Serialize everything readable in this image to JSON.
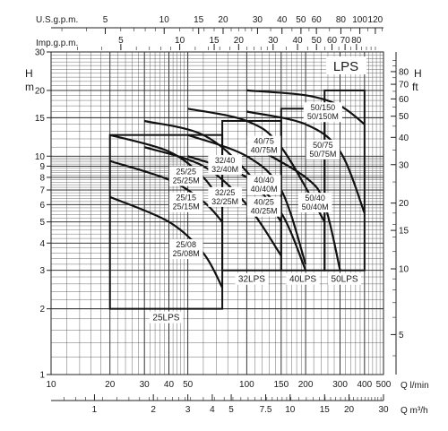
{
  "chart_data": {
    "type": "line",
    "title": "LPS",
    "x_axis_top_1": {
      "label": "U.S.g.p.m.",
      "ticks": [
        "5",
        "10",
        "15",
        "20",
        "30",
        "40",
        "50",
        "60",
        "80",
        "100",
        "120"
      ],
      "values": [
        5,
        10,
        15,
        20,
        30,
        40,
        50,
        60,
        80,
        100,
        120
      ]
    },
    "x_axis_top_2": {
      "label": "Imp.g.p.m.",
      "ticks": [
        "5",
        "10",
        "15",
        "20",
        "30",
        "40",
        "50",
        "60",
        "70",
        "80"
      ],
      "values": [
        5,
        10,
        15,
        20,
        30,
        40,
        50,
        60,
        70,
        80
      ]
    },
    "x_axis_bottom_1": {
      "label": "Q l/min",
      "ticks": [
        "10",
        "20",
        "30",
        "40",
        "50",
        "100",
        "150",
        "200",
        "300",
        "400",
        "500"
      ],
      "values": [
        10,
        20,
        30,
        40,
        50,
        100,
        150,
        200,
        300,
        400,
        500
      ]
    },
    "x_axis_bottom_2": {
      "label": "Q m³/h",
      "ticks": [
        "1",
        "2",
        "3",
        "4",
        "5",
        "7.5",
        "10",
        "15",
        "20",
        "30"
      ],
      "values": [
        1,
        2,
        3,
        4,
        5,
        7.5,
        10,
        15,
        20,
        30
      ]
    },
    "y_axis_left": {
      "label_top": "H",
      "label_bottom": "m",
      "ticks": [
        "1",
        "2",
        "3",
        "4",
        "5",
        "6",
        "7",
        "8",
        "9",
        "10",
        "15",
        "20",
        "30"
      ],
      "values": [
        1,
        2,
        3,
        4,
        5,
        6,
        7,
        8,
        9,
        10,
        15,
        20,
        30
      ],
      "range": [
        1,
        30
      ]
    },
    "y_axis_right": {
      "label_top": "H",
      "label_bottom": "ft",
      "ticks": [
        "5",
        "10",
        "15",
        "20",
        "30",
        "40",
        "50",
        "60",
        "70",
        "80"
      ],
      "values": [
        5,
        10,
        15,
        20,
        30,
        40,
        50,
        60,
        70,
        80
      ]
    },
    "groups": [
      {
        "label": "25LPS",
        "box": {
          "x": [
            20,
            75
          ],
          "y": [
            2,
            12.5
          ]
        }
      },
      {
        "label": "32LPS",
        "box": {
          "x": [
            75,
            150
          ],
          "y": [
            3,
            14.5
          ]
        }
      },
      {
        "label": "40LPS",
        "box": {
          "x": [
            150,
            250
          ],
          "y": [
            3,
            16.5
          ]
        }
      },
      {
        "label": "50LPS",
        "box": {
          "x": [
            250,
            400
          ],
          "y": [
            3,
            20
          ]
        }
      }
    ],
    "series": [
      {
        "name": "25/25 25/25M",
        "label_lines": [
          "25/25",
          "25/25M"
        ],
        "x": [
          20,
          40,
          60,
          75
        ],
        "y": [
          12.5,
          10.5,
          8,
          6
        ]
      },
      {
        "name": "25/15 25/15M",
        "label_lines": [
          "25/15",
          "25/15M"
        ],
        "x": [
          20,
          40,
          60,
          75
        ],
        "y": [
          9.5,
          7.8,
          6.2,
          5
        ]
      },
      {
        "name": "25/08 25/08M",
        "label_lines": [
          "25/08",
          "25/08M"
        ],
        "x": [
          20,
          40,
          60,
          75
        ],
        "y": [
          6.5,
          5,
          3.6,
          2.5
        ]
      },
      {
        "name": "32/40 32/40M",
        "label_lines": [
          "32/40",
          "32/40M"
        ],
        "x": [
          30,
          60,
          100,
          150
        ],
        "y": [
          14.5,
          12.5,
          8.5,
          5
        ]
      },
      {
        "name": "32/25 32/25M",
        "label_lines": [
          "32/25",
          "32/25M"
        ],
        "x": [
          30,
          60,
          100,
          150
        ],
        "y": [
          11,
          9,
          6,
          3.5
        ]
      },
      {
        "name": "40/75 40/75M",
        "label_lines": [
          "40/75",
          "40/75M"
        ],
        "x": [
          50,
          100,
          150,
          250
        ],
        "y": [
          16.5,
          14.5,
          11,
          5
        ]
      },
      {
        "name": "40/40 40/40M",
        "label_lines": [
          "40/40",
          "40/40M"
        ],
        "x": [
          50,
          100,
          150,
          200
        ],
        "y": [
          12.5,
          10,
          7,
          3.2
        ]
      },
      {
        "name": "40/25 40/25M",
        "label_lines": [
          "40/25",
          "40/25M"
        ],
        "x": [
          50,
          100,
          150,
          200
        ],
        "y": [
          10,
          8,
          5.5,
          3
        ]
      },
      {
        "name": "50/150 50/150M",
        "label_lines": [
          "50/150",
          "50/150M"
        ],
        "x": [
          100,
          200,
          300,
          400
        ],
        "y": [
          20,
          19,
          17,
          14
        ]
      },
      {
        "name": "50/75 50/75M",
        "label_lines": [
          "50/75",
          "50/75M"
        ],
        "x": [
          100,
          200,
          300,
          400
        ],
        "y": [
          16,
          14,
          10.5,
          5.5
        ]
      },
      {
        "name": "50/40 50/40M",
        "label_lines": [
          "50/40",
          "50/40M"
        ],
        "x": [
          100,
          200,
          250,
          300
        ],
        "y": [
          11.5,
          8,
          6,
          3
        ]
      }
    ]
  }
}
